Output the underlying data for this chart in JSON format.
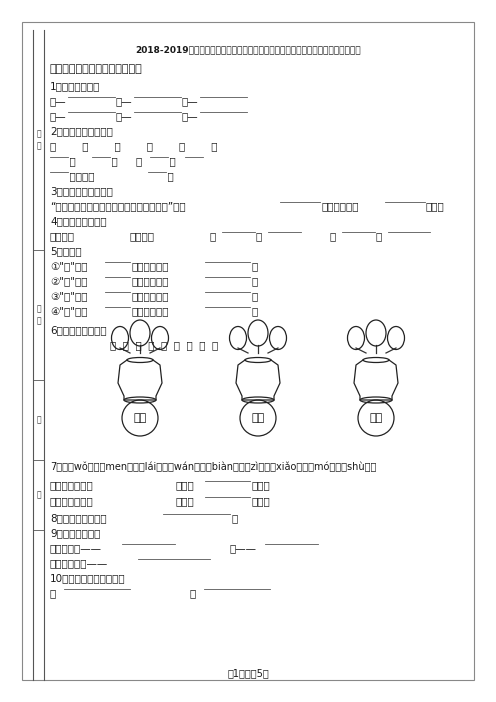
{
  "title": "2018-2019年石家庄市行唐县翟营乡北翟营小学一年级上册语文模拟期末测试无答案",
  "section1": "一、想一想，填一填（填空题）",
  "q1": "1．写出反义词。",
  "q1a": "粗—        多—        短—        ",
  "q1b": "前—        左—        上—        ",
  "q2": "2．填一填，读一读。",
  "q2a": "来        去        远        近        无        有",
  "q2b": "      头        尾        死        活      ",
  "q2c": "      水救不了        火",
  "q3": "3．读一读，想一想。",
  "q3a": "“你听树叶沙沙沙，那是风儿在和树说话。”是用        比作人，在和        说话。",
  "q4": "4．照样子，写词语",
  "q4a": "又宽又远          又长又软          又        又                    又        又        ",
  "q5": "5．填空。",
  "q5a": "①“水”字共        画，第一画是        ，",
  "q5b": "②“字”字共        画，第一画是        ，",
  "q5c": "③“来”字共        画，第一画是        ，",
  "q5d": "④“不”字共        画，第三画是        ，",
  "q6": "6．我会分类插花。",
  "q6chars": "口  三  目  禾  日  月  火  小  四",
  "q6v1": "三画",
  "q6v2": "四画",
  "q6v3": "五画",
  "q7": "7．我（wǒ）们（men）来（lái）玩（wán）变（biàn）字（zì）小（xiǎo）魔（mó）术（shù）。",
  "q7a": "鸟＋（口）＝鸣   田＋（         ）＝苗",
  "q7b": "重－（亻）＝里   天－（         ）＝二",
  "q8": "8．站的笔画顺序是        ，",
  "q9": "9．按要求写词语",
  "q9a": "反义词：前——                    左——        ",
  "q9b": "近义词：常常——        ",
  "q10": "10．填一填，组成词语。",
  "q10a": "非                    全        ",
  "footer": "第1页，共5页",
  "sidebar_sections": [
    "分",
    "数",
    "姓",
    "名",
    "号",
    "班"
  ],
  "bg_color": "#ffffff",
  "text_color": "#1a1a1a",
  "line_color": "#333333"
}
